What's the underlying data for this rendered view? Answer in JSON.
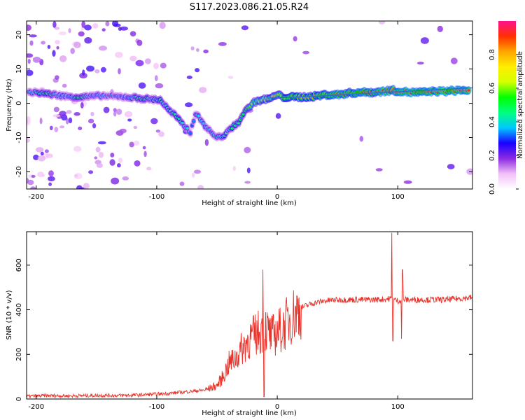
{
  "title": "S117.2023.086.21.05.R24",
  "chart_data": [
    {
      "type": "heatmap",
      "xlabel": "Height of straight line (km)",
      "ylabel": "Frequency (Hz)",
      "xlim": [
        -208,
        162
      ],
      "ylim": [
        -25,
        24
      ],
      "x_ticks": [
        -200,
        -100,
        0,
        100
      ],
      "y_ticks": [
        -20,
        -10,
        0,
        10,
        20
      ],
      "colorbar": {
        "label": "Normalized spectral amplitude",
        "range": [
          0.0,
          1.0
        ],
        "ticks": [
          0.0,
          0.2,
          0.4,
          0.6,
          0.8
        ],
        "colors": [
          "#ffffff",
          "#f3c0f7",
          "#8a2be2",
          "#1a00ff",
          "#00c8ff",
          "#00ff80",
          "#00ff00",
          "#d4ff00",
          "#ffee00",
          "#ffa500",
          "#ff3000",
          "#ff1090"
        ]
      },
      "ridge_points": [
        {
          "x": -206,
          "y": 3.2,
          "a": 0.35
        },
        {
          "x": -195,
          "y": 3.0,
          "a": 0.45
        },
        {
          "x": -185,
          "y": 2.5,
          "a": 0.4
        },
        {
          "x": -175,
          "y": 2.0,
          "a": 0.35
        },
        {
          "x": -165,
          "y": 1.8,
          "a": 0.45
        },
        {
          "x": -155,
          "y": 2.0,
          "a": 0.35
        },
        {
          "x": -145,
          "y": 2.2,
          "a": 0.35
        },
        {
          "x": -135,
          "y": 2.0,
          "a": 0.3
        },
        {
          "x": -125,
          "y": 1.8,
          "a": 0.35
        },
        {
          "x": -115,
          "y": 1.5,
          "a": 0.45
        },
        {
          "x": -105,
          "y": 1.2,
          "a": 0.4
        },
        {
          "x": -97,
          "y": 1.0,
          "a": 0.45
        },
        {
          "x": -90,
          "y": -2.0,
          "a": 0.4
        },
        {
          "x": -85,
          "y": -3.5,
          "a": 0.45
        },
        {
          "x": -80,
          "y": -5.5,
          "a": 0.45
        },
        {
          "x": -76,
          "y": -7.0,
          "a": 0.4
        },
        {
          "x": -72,
          "y": -8.5,
          "a": 0.35
        },
        {
          "x": -68,
          "y": -3.0,
          "a": 0.35
        },
        {
          "x": -64,
          "y": -4.5,
          "a": 0.4
        },
        {
          "x": -60,
          "y": -6.5,
          "a": 0.4
        },
        {
          "x": -55,
          "y": -8.5,
          "a": 0.35
        },
        {
          "x": -50,
          "y": -10.0,
          "a": 0.35
        },
        {
          "x": -45,
          "y": -9.5,
          "a": 0.45
        },
        {
          "x": -40,
          "y": -8.0,
          "a": 0.4
        },
        {
          "x": -36,
          "y": -6.5,
          "a": 0.5
        },
        {
          "x": -32,
          "y": -5.5,
          "a": 0.5
        },
        {
          "x": -28,
          "y": -3.0,
          "a": 0.5
        },
        {
          "x": -22,
          "y": -0.5,
          "a": 0.6
        },
        {
          "x": -18,
          "y": 0.5,
          "a": 0.6
        },
        {
          "x": -12,
          "y": 1.0,
          "a": 0.65
        },
        {
          "x": -5,
          "y": 1.5,
          "a": 0.7
        },
        {
          "x": 0,
          "y": 2.5,
          "a": 0.65
        },
        {
          "x": 5,
          "y": 1.8,
          "a": 0.75
        },
        {
          "x": 12,
          "y": 1.8,
          "a": 0.8
        },
        {
          "x": 20,
          "y": 1.8,
          "a": 0.75
        },
        {
          "x": 30,
          "y": 2.0,
          "a": 0.8
        },
        {
          "x": 40,
          "y": 2.5,
          "a": 0.85
        },
        {
          "x": 50,
          "y": 2.5,
          "a": 0.9
        },
        {
          "x": 60,
          "y": 3.0,
          "a": 0.85
        },
        {
          "x": 70,
          "y": 3.2,
          "a": 0.9
        },
        {
          "x": 80,
          "y": 3.2,
          "a": 0.85
        },
        {
          "x": 88,
          "y": 3.5,
          "a": 0.95
        },
        {
          "x": 95,
          "y": 3.8,
          "a": 0.85
        },
        {
          "x": 102,
          "y": 3.5,
          "a": 0.9
        },
        {
          "x": 110,
          "y": 3.2,
          "a": 0.95
        },
        {
          "x": 120,
          "y": 3.2,
          "a": 0.9
        },
        {
          "x": 130,
          "y": 3.5,
          "a": 0.9
        },
        {
          "x": 140,
          "y": 3.5,
          "a": 0.95
        },
        {
          "x": 150,
          "y": 3.8,
          "a": 0.9
        },
        {
          "x": 160,
          "y": 3.8,
          "a": 0.95
        }
      ],
      "fit_line": {
        "color": "#1e6fd0",
        "points": [
          [
            -8,
            1.5
          ],
          [
            30,
            2.0
          ],
          [
            80,
            3.0
          ],
          [
            162,
            4.5
          ]
        ]
      }
    },
    {
      "type": "line",
      "xlabel": "Height of straight line (km)",
      "ylabel": "SNR (10 * v/v)",
      "xlim": [
        -208,
        162
      ],
      "ylim": [
        0,
        750
      ],
      "x_ticks": [
        -200,
        -100,
        0,
        100
      ],
      "y_ticks": [
        0,
        200,
        400,
        600
      ],
      "color": "#e8322a",
      "x": [
        -208,
        -190,
        -170,
        -150,
        -130,
        -115,
        -100,
        -90,
        -80,
        -70,
        -60,
        -50,
        -45,
        -40,
        -35,
        -30,
        -25,
        -20,
        -15,
        -10,
        -5,
        0,
        5,
        10,
        20,
        30,
        40,
        50,
        60,
        70,
        80,
        90,
        95,
        100,
        105,
        110,
        120,
        130,
        140,
        150,
        162
      ],
      "y": [
        12,
        15,
        14,
        16,
        16,
        18,
        22,
        25,
        30,
        35,
        40,
        60,
        100,
        160,
        180,
        220,
        260,
        280,
        300,
        320,
        280,
        300,
        320,
        360,
        410,
        430,
        440,
        445,
        445,
        445,
        445,
        448,
        450,
        440,
        445,
        445,
        445,
        445,
        445,
        450,
        455
      ],
      "spikes": [
        {
          "x": -12,
          "y": 580
        },
        {
          "x": -11,
          "y": 10
        },
        {
          "x": 95,
          "y": 745
        },
        {
          "x": 96,
          "y": 260
        },
        {
          "x": 103,
          "y": 270
        },
        {
          "x": 104,
          "y": 580
        }
      ]
    }
  ]
}
